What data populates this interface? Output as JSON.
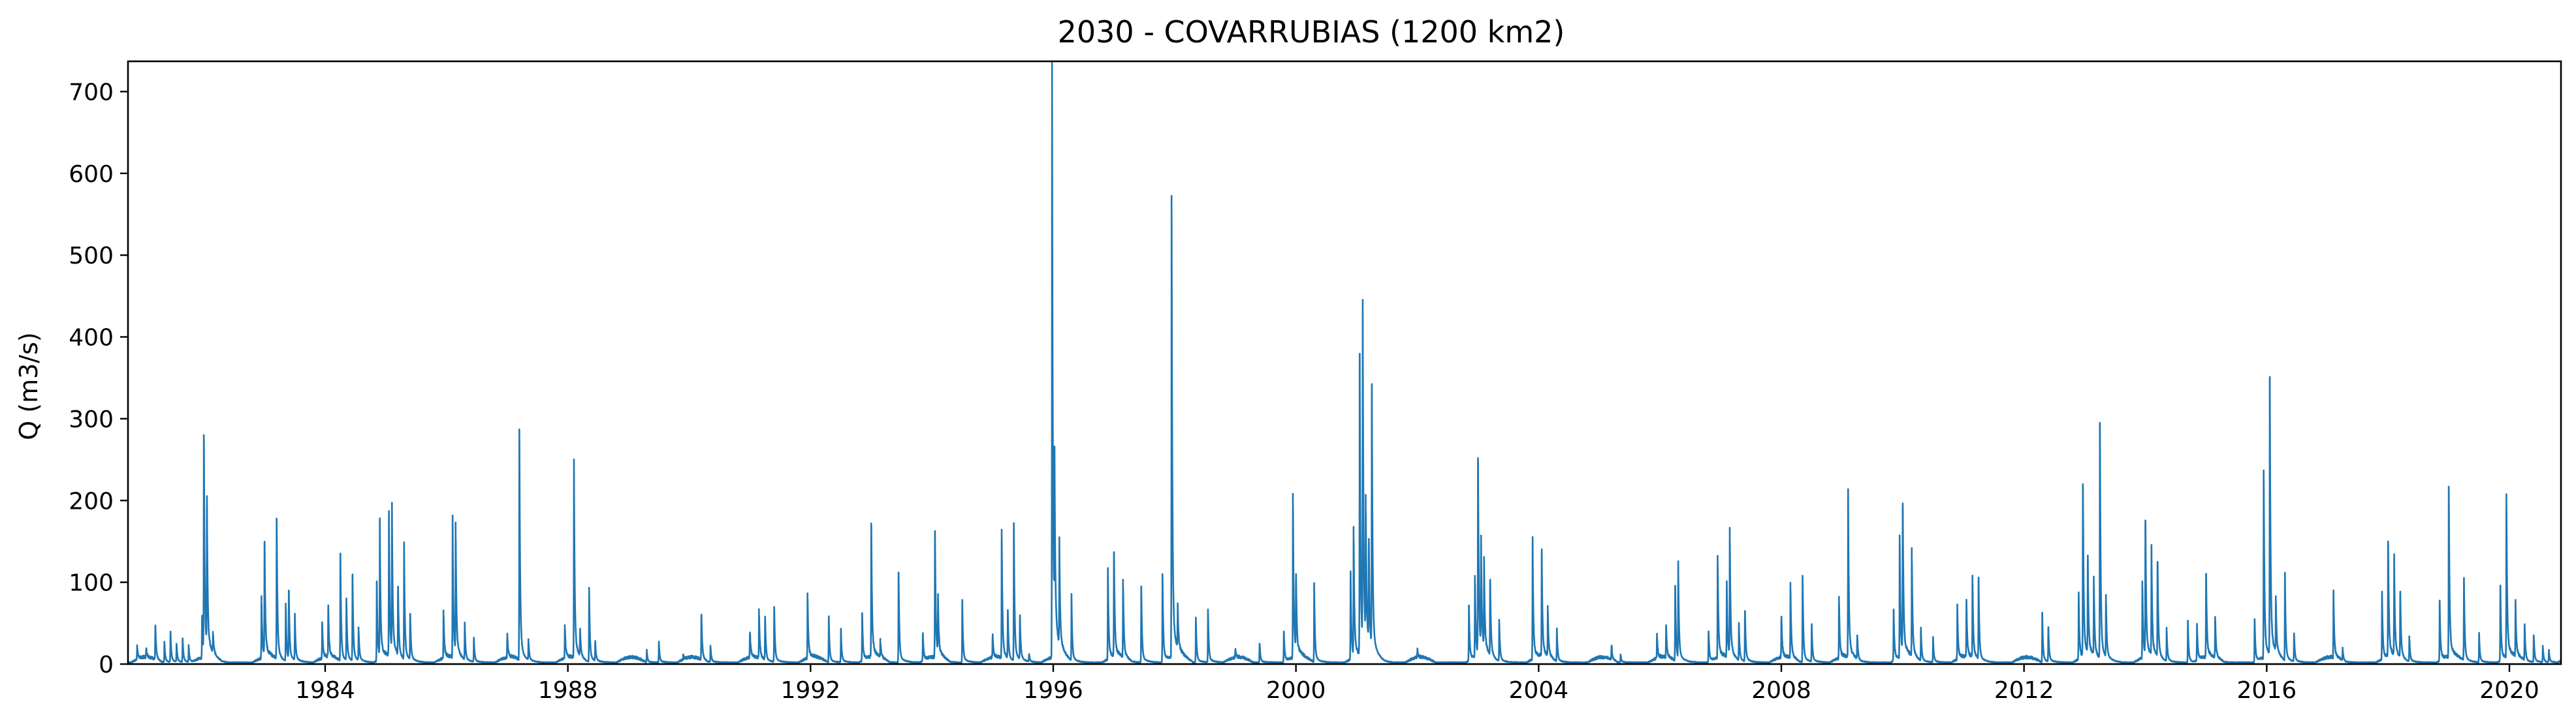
{
  "chart_data": {
    "type": "line",
    "title": "2030 - COVARRUBIAS (1200 km2)",
    "xlabel": "",
    "ylabel": "Q (m3/s)",
    "xlim": [
      1980.75,
      2020.85
    ],
    "ylim": [
      0,
      737
    ],
    "x_ticks": [
      1984,
      1988,
      1992,
      1996,
      2000,
      2004,
      2008,
      2012,
      2016,
      2020
    ],
    "y_ticks": [
      0,
      100,
      200,
      300,
      400,
      500,
      600,
      700
    ],
    "grid": false,
    "line_color": "#1f77b4",
    "peaks": [
      [
        1980.9,
        18
      ],
      [
        1981.05,
        12
      ],
      [
        1981.2,
        45
      ],
      [
        1981.35,
        25
      ],
      [
        1981.45,
        38
      ],
      [
        1981.55,
        22
      ],
      [
        1981.65,
        30
      ],
      [
        1981.75,
        20
      ],
      [
        1981.97,
        55
      ],
      [
        1982.0,
        280
      ],
      [
        1982.05,
        185
      ],
      [
        1982.15,
        25
      ],
      [
        1982.95,
        75
      ],
      [
        1983.0,
        148
      ],
      [
        1983.2,
        178
      ],
      [
        1983.35,
        70
      ],
      [
        1983.4,
        90
      ],
      [
        1983.5,
        55
      ],
      [
        1983.95,
        45
      ],
      [
        1984.05,
        65
      ],
      [
        1984.25,
        135
      ],
      [
        1984.35,
        75
      ],
      [
        1984.45,
        108
      ],
      [
        1984.55,
        40
      ],
      [
        1984.85,
        100
      ],
      [
        1984.9,
        163
      ],
      [
        1985.05,
        180
      ],
      [
        1985.1,
        175
      ],
      [
        1985.2,
        90
      ],
      [
        1985.3,
        140
      ],
      [
        1985.4,
        60
      ],
      [
        1985.95,
        60
      ],
      [
        1986.1,
        167
      ],
      [
        1986.15,
        155
      ],
      [
        1986.3,
        45
      ],
      [
        1986.45,
        30
      ],
      [
        1987.0,
        30
      ],
      [
        1987.2,
        287
      ],
      [
        1987.35,
        25
      ],
      [
        1987.95,
        40
      ],
      [
        1988.1,
        235
      ],
      [
        1988.2,
        35
      ],
      [
        1988.35,
        90
      ],
      [
        1988.45,
        25
      ],
      [
        1989.3,
        15
      ],
      [
        1989.5,
        25
      ],
      [
        1989.9,
        5
      ],
      [
        1990.2,
        60
      ],
      [
        1990.35,
        20
      ],
      [
        1991.0,
        35
      ],
      [
        1991.15,
        60
      ],
      [
        1991.25,
        55
      ],
      [
        1991.4,
        70
      ],
      [
        1991.95,
        80
      ],
      [
        1992.3,
        55
      ],
      [
        1992.5,
        40
      ],
      [
        1992.85,
        60
      ],
      [
        1993.0,
        172
      ],
      [
        1993.15,
        20
      ],
      [
        1993.45,
        112
      ],
      [
        1993.85,
        35
      ],
      [
        1994.05,
        160
      ],
      [
        1994.1,
        65
      ],
      [
        1994.5,
        75
      ],
      [
        1995.0,
        30
      ],
      [
        1995.15,
        157
      ],
      [
        1995.25,
        60
      ],
      [
        1995.35,
        168
      ],
      [
        1995.45,
        55
      ],
      [
        1995.6,
        10
      ],
      [
        1995.98,
        702
      ],
      [
        1996.02,
        205
      ],
      [
        1996.1,
        125
      ],
      [
        1996.3,
        80
      ],
      [
        1996.9,
        110
      ],
      [
        1997.0,
        137
      ],
      [
        1997.15,
        95
      ],
      [
        1997.45,
        95
      ],
      [
        1997.8,
        110
      ],
      [
        1997.95,
        563
      ],
      [
        1998.05,
        55
      ],
      [
        1998.35,
        55
      ],
      [
        1998.55,
        65
      ],
      [
        1999.0,
        10
      ],
      [
        1999.4,
        25
      ],
      [
        1999.8,
        40
      ],
      [
        1999.95,
        200
      ],
      [
        2000.0,
        100
      ],
      [
        2000.3,
        95
      ],
      [
        2000.9,
        105
      ],
      [
        2000.95,
        155
      ],
      [
        2001.05,
        378
      ],
      [
        2001.1,
        405
      ],
      [
        2001.15,
        165
      ],
      [
        2001.2,
        135
      ],
      [
        2001.25,
        330
      ],
      [
        2002.0,
        10
      ],
      [
        2002.85,
        70
      ],
      [
        2002.95,
        100
      ],
      [
        2003.0,
        252
      ],
      [
        2003.05,
        135
      ],
      [
        2003.1,
        105
      ],
      [
        2003.2,
        100
      ],
      [
        2003.35,
        50
      ],
      [
        2003.9,
        145
      ],
      [
        2004.05,
        133
      ],
      [
        2004.15,
        60
      ],
      [
        2004.3,
        40
      ],
      [
        2005.2,
        20
      ],
      [
        2005.35,
        10
      ],
      [
        2005.95,
        30
      ],
      [
        2006.1,
        40
      ],
      [
        2006.25,
        95
      ],
      [
        2006.3,
        115
      ],
      [
        2006.8,
        40
      ],
      [
        2006.95,
        125
      ],
      [
        2007.1,
        90
      ],
      [
        2007.15,
        152
      ],
      [
        2007.3,
        45
      ],
      [
        2007.4,
        65
      ],
      [
        2008.0,
        55
      ],
      [
        2008.15,
        92
      ],
      [
        2008.35,
        105
      ],
      [
        2008.5,
        45
      ],
      [
        2008.95,
        75
      ],
      [
        2009.1,
        200
      ],
      [
        2009.25,
        30
      ],
      [
        2009.85,
        65
      ],
      [
        2009.95,
        150
      ],
      [
        2010.0,
        193
      ],
      [
        2010.15,
        130
      ],
      [
        2010.3,
        40
      ],
      [
        2010.5,
        30
      ],
      [
        2010.9,
        65
      ],
      [
        2011.05,
        70
      ],
      [
        2011.15,
        100
      ],
      [
        2011.25,
        102
      ],
      [
        2012.3,
        60
      ],
      [
        2012.4,
        45
      ],
      [
        2012.9,
        80
      ],
      [
        2012.97,
        220
      ],
      [
        2013.05,
        120
      ],
      [
        2013.15,
        95
      ],
      [
        2013.25,
        295
      ],
      [
        2013.35,
        75
      ],
      [
        2013.95,
        95
      ],
      [
        2014.0,
        175
      ],
      [
        2014.1,
        130
      ],
      [
        2014.2,
        125
      ],
      [
        2014.35,
        40
      ],
      [
        2014.7,
        50
      ],
      [
        2014.85,
        45
      ],
      [
        2015.0,
        110
      ],
      [
        2015.15,
        50
      ],
      [
        2015.8,
        55
      ],
      [
        2015.95,
        230
      ],
      [
        2016.05,
        347
      ],
      [
        2016.15,
        65
      ],
      [
        2016.3,
        105
      ],
      [
        2016.45,
        35
      ],
      [
        2017.1,
        80
      ],
      [
        2017.25,
        15
      ],
      [
        2017.9,
        80
      ],
      [
        2018.0,
        150
      ],
      [
        2018.1,
        120
      ],
      [
        2018.2,
        85
      ],
      [
        2018.35,
        30
      ],
      [
        2018.85,
        75
      ],
      [
        2019.0,
        217
      ],
      [
        2019.25,
        103
      ],
      [
        2019.5,
        35
      ],
      [
        2019.85,
        95
      ],
      [
        2019.95,
        197
      ],
      [
        2020.1,
        65
      ],
      [
        2020.25,
        45
      ],
      [
        2020.4,
        35
      ],
      [
        2020.55,
        20
      ],
      [
        2020.65,
        15
      ]
    ]
  }
}
